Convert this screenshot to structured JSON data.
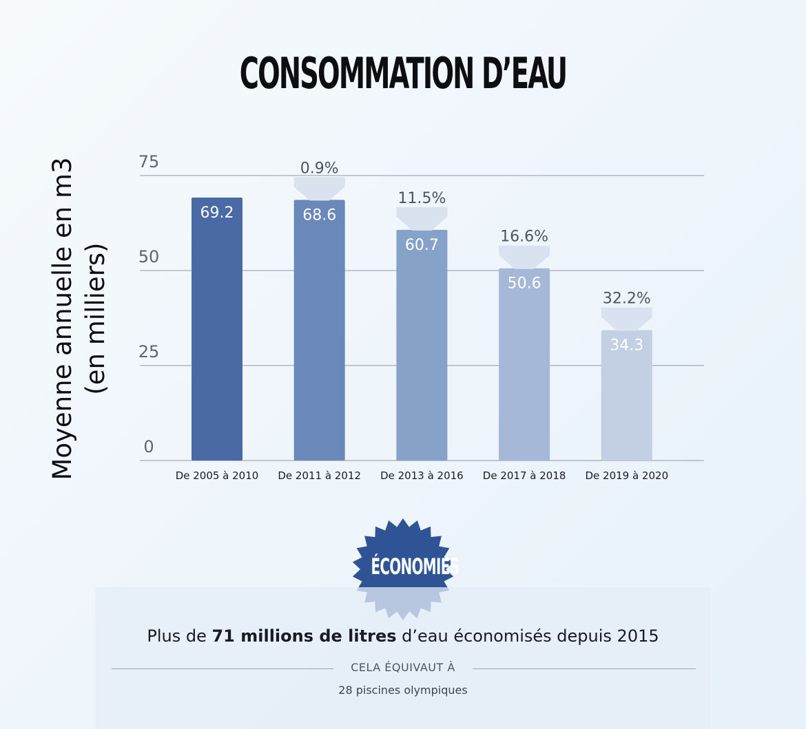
{
  "chart_data": {
    "type": "bar",
    "title": "CONSOMMATION D’EAU",
    "ylabel_lines": [
      "Moyenne annuelle en m3",
      "(en milliers)"
    ],
    "categories": [
      "De 2005 à 2010",
      "De 2011 à 2012",
      "De 2013 à 2016",
      "De 2017 à 2018",
      "De 2019 à 2020"
    ],
    "values": [
      69.2,
      68.6,
      60.7,
      50.6,
      34.3
    ],
    "value_labels": [
      "69.2",
      "68.6",
      "60.7",
      "50.6",
      "34.3"
    ],
    "reductions": [
      "",
      "0.9%",
      "11.5%",
      "16.6%",
      "32.2%"
    ],
    "yticks": [
      "0",
      "25",
      "50",
      "75"
    ],
    "ylim": [
      0,
      75
    ],
    "grid": true,
    "bar_colors": [
      "#4a6aa5",
      "#6a89ba",
      "#87a2c9",
      "#a5b8d7",
      "#c3d0e4"
    ],
    "reduction_badge_color": "#d9e3ef"
  },
  "economies": {
    "badge_label": "ÉCONOMIES",
    "badge_color": "#2f5496",
    "savings_prefix": "Plus de ",
    "savings_bold": "71 millions de litres",
    "savings_suffix": " d’eau économisés depuis 2015",
    "equivalent_label": "CELA ÉQUIVAUT À",
    "equivalent_value": "28 piscines olympiques"
  }
}
